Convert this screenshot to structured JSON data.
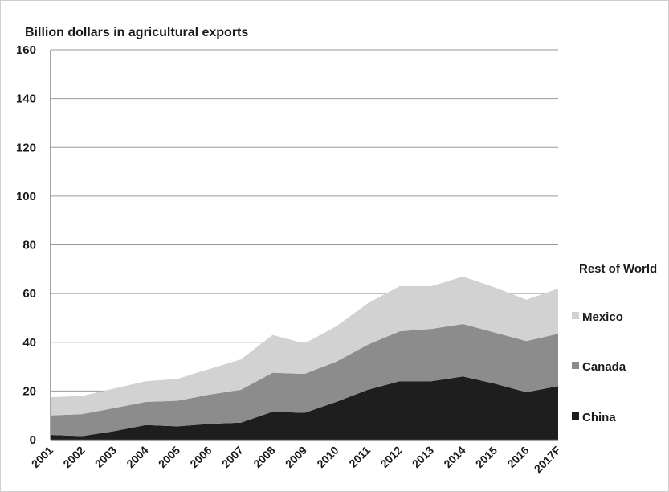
{
  "chart_data": {
    "type": "area",
    "stacked": true,
    "title": "Billion dollars in agricultural exports",
    "xlabel": "",
    "ylabel": "",
    "ylim": [
      0,
      160
    ],
    "yticks": [
      0,
      20,
      40,
      60,
      80,
      100,
      120,
      140,
      160
    ],
    "grid": true,
    "legend_position": "right",
    "categories": [
      "2001",
      "2002",
      "2003",
      "2004",
      "2005",
      "2006",
      "2007",
      "2008",
      "2009",
      "2010",
      "2011",
      "2012",
      "2013",
      "2014",
      "2015",
      "2016",
      "2017F"
    ],
    "series": [
      {
        "name": "China",
        "color": "#1e1e1e",
        "values": [
          2,
          1.5,
          3.5,
          6,
          5.5,
          6.5,
          7,
          11.5,
          11,
          15.5,
          20.5,
          24,
          24,
          26,
          23,
          19.5,
          22
        ]
      },
      {
        "name": "Canada",
        "color": "#8c8c8c",
        "values": [
          8,
          9,
          9.5,
          9.5,
          10.5,
          12,
          13.5,
          16,
          16,
          16.5,
          18.5,
          20.5,
          21.5,
          21.5,
          21,
          21,
          21.5
        ]
      },
      {
        "name": "Mexico",
        "color": "#d2d2d2",
        "values": [
          7.5,
          7.5,
          8,
          8.5,
          9,
          10.5,
          12.5,
          15.5,
          12.5,
          14.5,
          17,
          18.5,
          17.5,
          19.5,
          18.5,
          17,
          18.5
        ]
      },
      {
        "name": "Rest of World",
        "color": "#ffffff",
        "values": [
          0,
          0,
          0,
          0,
          0,
          0,
          0,
          0,
          0,
          0,
          0,
          0,
          0,
          0,
          0,
          0,
          0
        ]
      }
    ]
  }
}
